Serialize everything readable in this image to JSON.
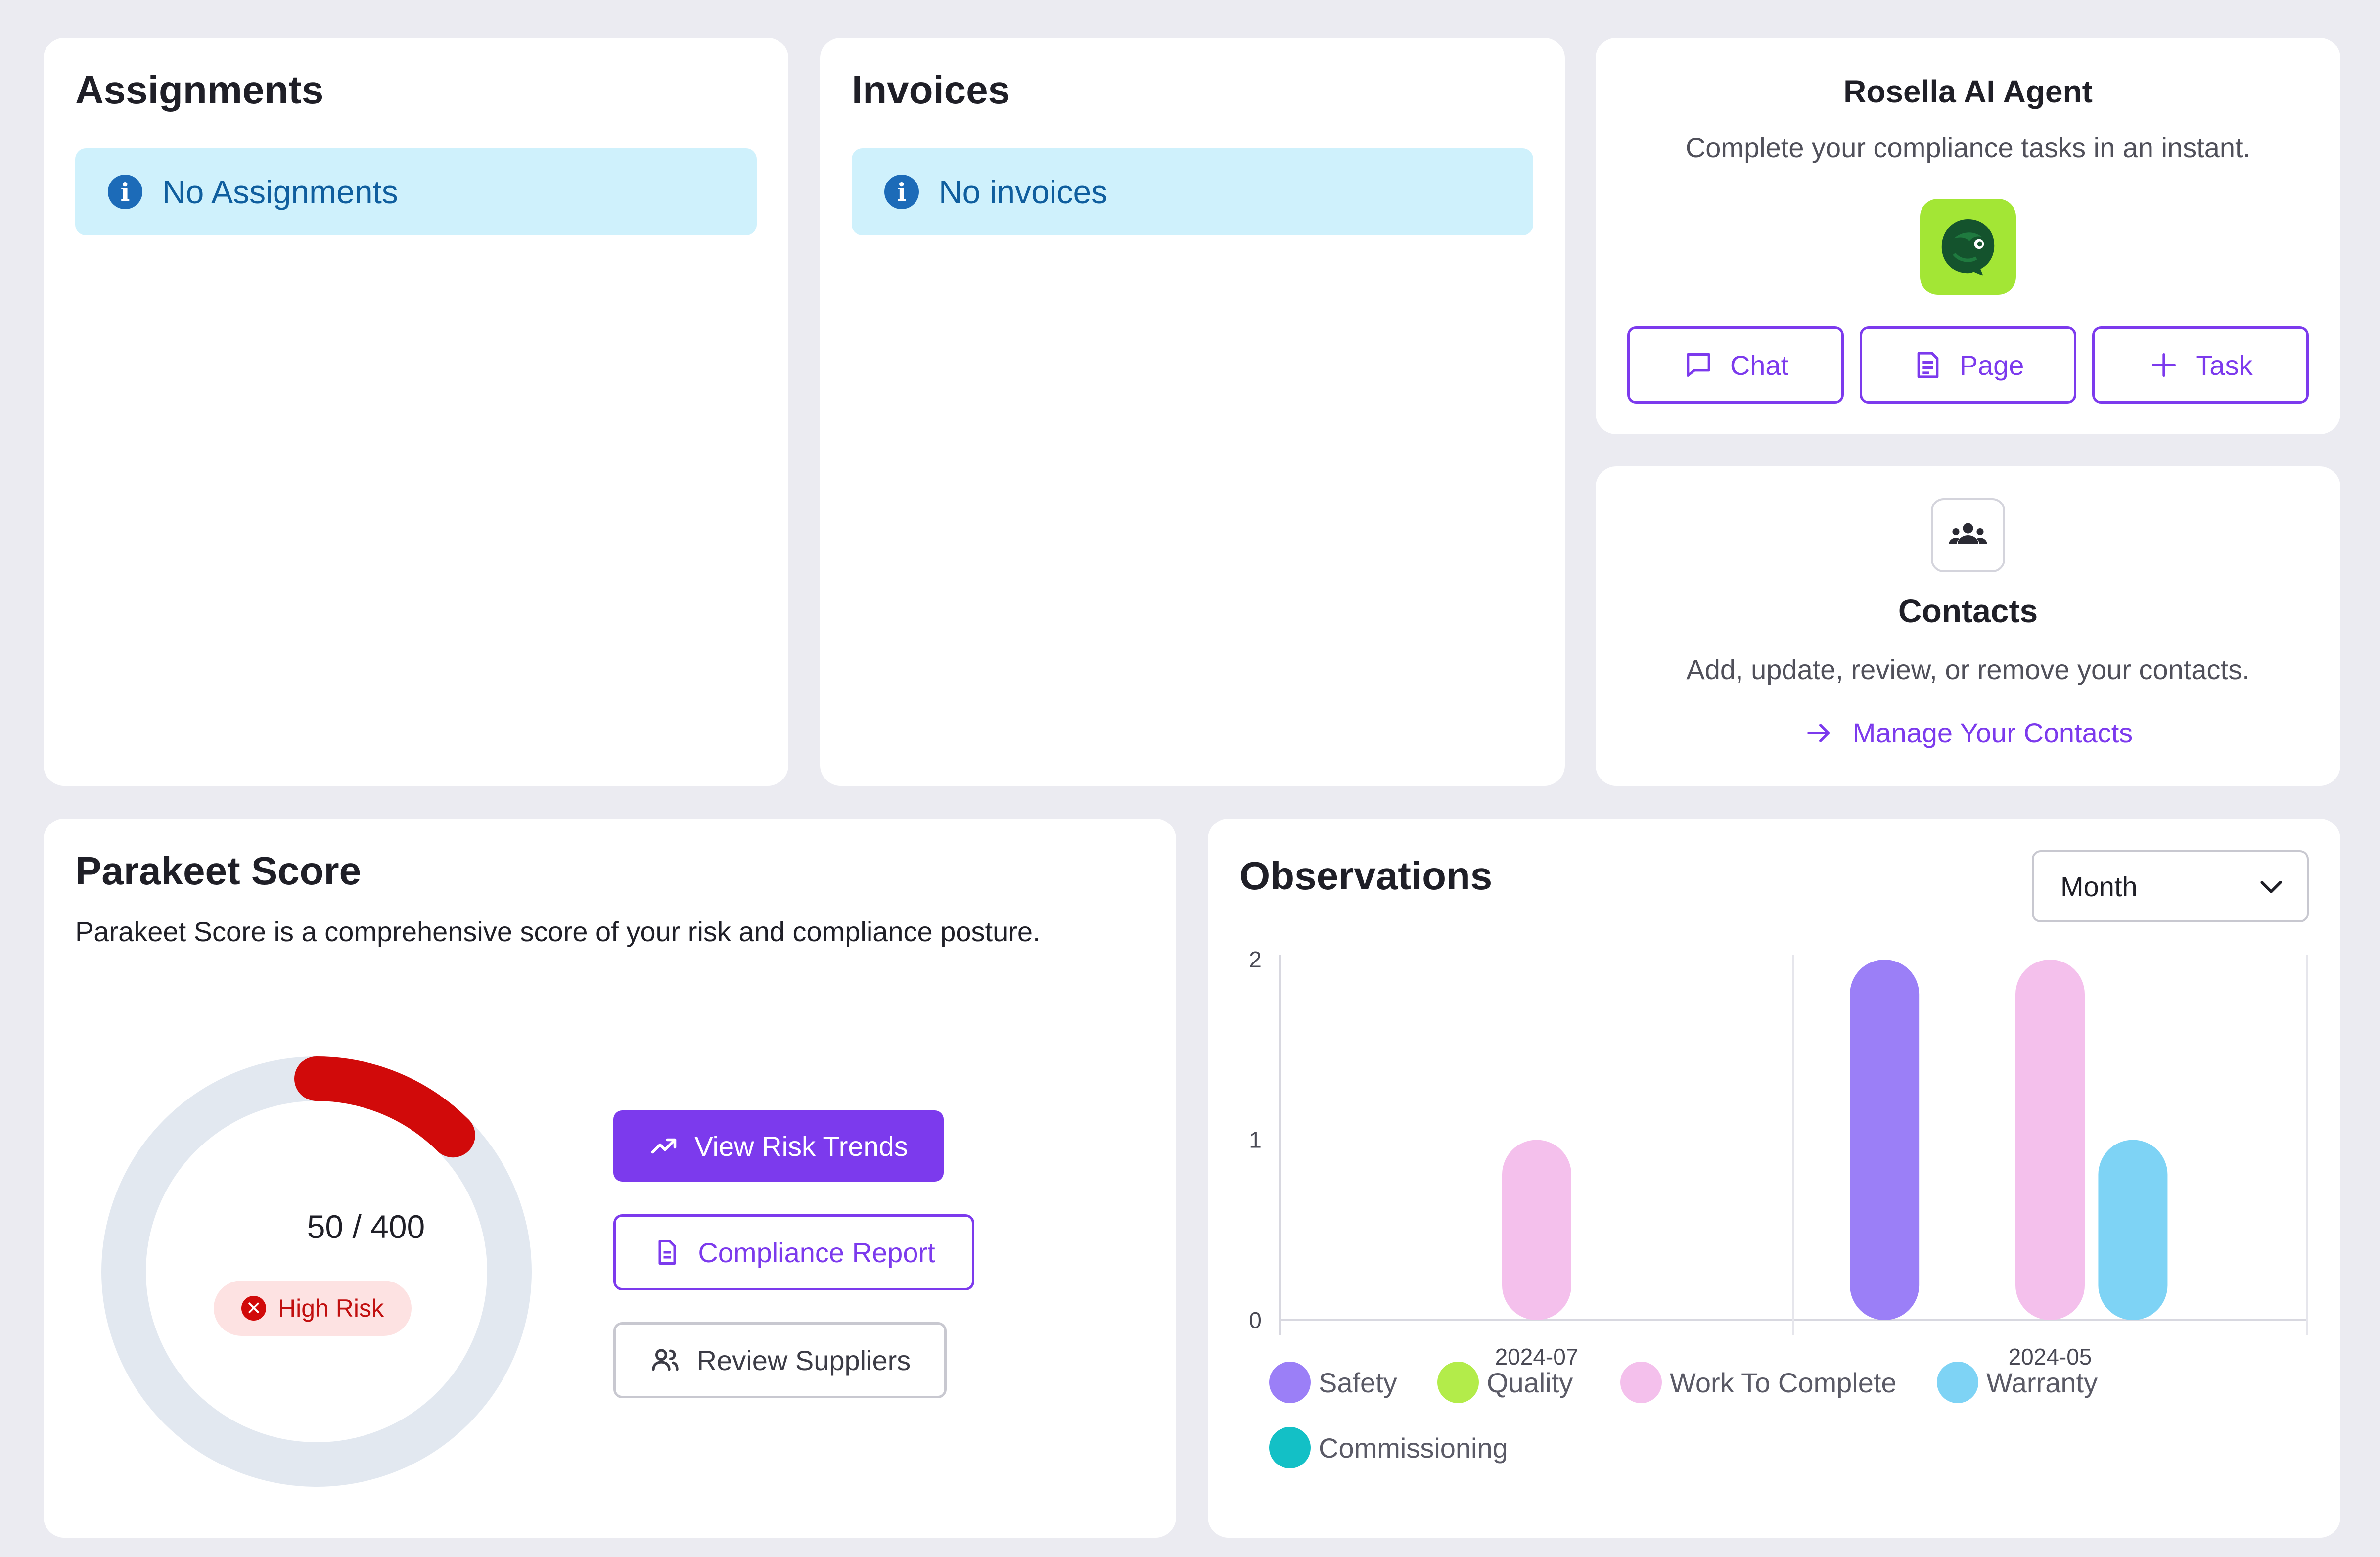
{
  "assignments": {
    "title": "Assignments",
    "empty_message": "No Assignments"
  },
  "invoices": {
    "title": "Invoices",
    "empty_message": "No invoices"
  },
  "agent": {
    "title": "Rosella AI Agent",
    "subtitle": "Complete your compliance tasks in an instant.",
    "chat_label": "Chat",
    "page_label": "Page",
    "task_label": "Task"
  },
  "contacts": {
    "title": "Contacts",
    "subtitle": "Add, update, review, or remove your contacts.",
    "link_label": "Manage Your Contacts"
  },
  "score": {
    "title": "Parakeet Score",
    "description": "Parakeet Score is a comprehensive score of your risk and compliance posture.",
    "value": 50,
    "max": 400,
    "value_text": "50 / 400",
    "risk_label": "High Risk",
    "risk_color": "#d10a0a",
    "track_color": "#e2e8f0",
    "buttons": {
      "trends": "View Risk Trends",
      "report": "Compliance Report",
      "suppliers": "Review Suppliers"
    }
  },
  "observations": {
    "title": "Observations",
    "period_select": "Month"
  },
  "chart_data": {
    "type": "bar",
    "categories": [
      "2024-07",
      "2024-05"
    ],
    "ylim": [
      0,
      2
    ],
    "yticks": [
      "0",
      "1",
      "2"
    ],
    "grid": false,
    "legend_position": "bottom",
    "series": [
      {
        "name": "Safety",
        "color": "#9b7ff7",
        "values": [
          0,
          2
        ]
      },
      {
        "name": "Quality",
        "color": "#b3ec4a",
        "values": [
          0,
          0
        ]
      },
      {
        "name": "Work To Complete",
        "color": "#f4c0ec",
        "values": [
          1,
          2
        ]
      },
      {
        "name": "Warranty",
        "color": "#7ed3f5",
        "values": [
          0,
          1
        ]
      },
      {
        "name": "Commissioning",
        "color": "#13c0c6",
        "values": [
          0,
          0
        ]
      }
    ]
  }
}
